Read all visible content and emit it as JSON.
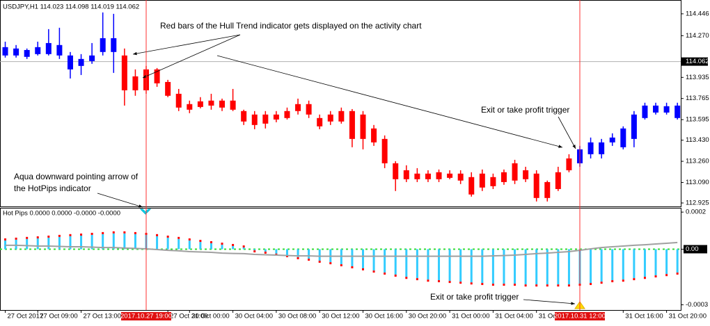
{
  "chart_data": [
    {
      "type": "candlestick",
      "title": "USDJPY,H1 114.023 114.098 114.019 114.062",
      "categories": [
        "27 Oct 2017",
        null,
        null,
        "27 Oct 09:00",
        null,
        null,
        null,
        "27 Oct 13:00",
        null,
        null,
        null,
        null,
        null,
        "2017.10.27 19:00",
        null,
        "27 Oct 21:00",
        null,
        "30 Oct 00:00",
        null,
        null,
        null,
        "30 Oct 04:00",
        null,
        null,
        null,
        "30 Oct 08:00",
        null,
        null,
        null,
        "30 Oct 12:00",
        null,
        null,
        null,
        "30 Oct 16:00",
        null,
        null,
        null,
        "30 Oct 20:00",
        null,
        null,
        null,
        "31 Oct 00:00",
        null,
        null,
        null,
        "31 Oct 04:00",
        null,
        null,
        null,
        "31 Oct 08:00",
        null,
        null,
        null,
        "2017.10.31 12:00",
        null,
        null,
        null,
        "31 Oct 16:00",
        null,
        null,
        null,
        "31 Oct 20:00",
        null
      ],
      "open": [
        114.111,
        114.111,
        114.1,
        114.122,
        114.122,
        114.111,
        113.999,
        114.027,
        114.066,
        114.139,
        114.139,
        114.111,
        113.943,
        113.999,
        113.999,
        113.898,
        113.803,
        113.72,
        113.742,
        113.748,
        113.748,
        113.748,
        113.664,
        113.636,
        113.636,
        113.636,
        113.664,
        113.72,
        113.72,
        113.608,
        113.636,
        113.664,
        113.664,
        113.636,
        113.524,
        113.44,
        113.244,
        113.188,
        113.161,
        113.161,
        113.172,
        113.161,
        113.161,
        113.133,
        113.161,
        113.133,
        113.172,
        113.244,
        113.188,
        113.161,
        113.093,
        113.172,
        113.283,
        113.244,
        113.317,
        113.317,
        113.412,
        113.373,
        113.44,
        113.608,
        113.652,
        113.652,
        113.608
      ],
      "high": [
        114.222,
        114.195,
        114.167,
        114.222,
        114.323,
        114.334,
        114.139,
        114.122,
        114.211,
        114.457,
        114.446,
        114.167,
        113.999,
        114.027,
        114.01,
        113.915,
        113.842,
        113.748,
        113.776,
        113.803,
        113.764,
        113.842,
        113.675,
        113.664,
        113.664,
        113.664,
        113.692,
        113.764,
        113.748,
        113.636,
        113.664,
        113.692,
        113.68,
        113.664,
        113.552,
        113.468,
        113.261,
        113.228,
        113.205,
        113.188,
        113.194,
        113.188,
        113.188,
        113.172,
        113.194,
        113.161,
        113.194,
        113.272,
        113.216,
        113.188,
        113.105,
        113.216,
        113.317,
        113.384,
        113.451,
        113.44,
        113.485,
        113.541,
        113.664,
        113.731,
        113.731,
        113.731,
        113.731
      ],
      "low": [
        114.094,
        114.094,
        114.083,
        114.111,
        114.111,
        114.083,
        113.926,
        113.954,
        114.044,
        114.111,
        113.971,
        113.708,
        113.787,
        113.803,
        113.859,
        113.776,
        113.664,
        113.647,
        113.686,
        113.675,
        113.664,
        113.664,
        113.552,
        113.518,
        113.524,
        113.574,
        113.596,
        113.636,
        113.608,
        113.518,
        113.552,
        113.563,
        113.373,
        113.356,
        113.384,
        113.205,
        113.021,
        113.093,
        113.093,
        113.093,
        113.093,
        113.116,
        113.077,
        112.976,
        113.021,
        113.037,
        113.071,
        113.077,
        113.093,
        112.937,
        112.937,
        113.021,
        113.172,
        113.216,
        113.283,
        113.283,
        113.384,
        113.356,
        113.373,
        113.596,
        113.636,
        113.636,
        113.596
      ],
      "close": [
        114.178,
        114.167,
        114.155,
        114.178,
        114.211,
        114.195,
        114.111,
        114.083,
        114.111,
        114.25,
        114.25,
        113.831,
        113.831,
        113.831,
        113.887,
        113.787,
        113.692,
        113.675,
        113.697,
        113.708,
        113.692,
        113.675,
        113.58,
        113.552,
        113.563,
        113.596,
        113.608,
        113.664,
        113.636,
        113.541,
        113.58,
        113.58,
        113.44,
        113.44,
        113.412,
        113.244,
        113.116,
        113.116,
        113.116,
        113.116,
        113.116,
        113.127,
        113.105,
        112.993,
        113.049,
        113.06,
        113.093,
        113.105,
        113.116,
        112.965,
        112.965,
        113.037,
        113.188,
        113.356,
        113.412,
        113.412,
        113.451,
        113.524,
        113.636,
        113.708,
        113.708,
        113.703,
        113.708
      ],
      "colors": [
        "#0000ff",
        "#0000ff",
        "#0000ff",
        "#0000ff",
        "#0000ff",
        "#0000ff",
        "#0000ff",
        "#0000ff",
        "#0000ff",
        "#0000ff",
        "#0000ff",
        "#ff0000",
        "#ff0000",
        "#ff0000",
        "#ff0000",
        "#ff0000",
        "#ff0000",
        "#ff0000",
        "#ff0000",
        "#ff0000",
        "#ff0000",
        "#ff0000",
        "#ff0000",
        "#ff0000",
        "#ff0000",
        "#ff0000",
        "#ff0000",
        "#ff0000",
        "#ff0000",
        "#ff0000",
        "#ff0000",
        "#ff0000",
        "#ff0000",
        "#ff0000",
        "#ff0000",
        "#ff0000",
        "#ff0000",
        "#ff0000",
        "#ff0000",
        "#ff0000",
        "#ff0000",
        "#ff0000",
        "#ff0000",
        "#ff0000",
        "#ff0000",
        "#ff0000",
        "#ff0000",
        "#ff0000",
        "#ff0000",
        "#ff0000",
        "#ff0000",
        "#ff0000",
        "#ff0000",
        "#0000ff",
        "#0000ff",
        "#0000ff",
        "#0000ff",
        "#0000ff",
        "#0000ff",
        "#0000ff",
        "#0000ff",
        "#0000ff",
        "#0000ff"
      ],
      "vlines": [
        "2017.10.27 19:00",
        "2017.10.31 12:00"
      ],
      "current_price": 114.062,
      "ylim": [
        112.897,
        114.546
      ],
      "yticks": [
        114.446,
        {
          "value": 114.27,
          "label": "114.270"
        },
        113.935,
        113.765,
        113.595,
        {
          "value": 113.43,
          "label": "113.430"
        },
        {
          "value": 113.26,
          "label": "113.260"
        },
        {
          "value": 113.09,
          "label": "113.090"
        },
        112.925
      ]
    },
    {
      "type": "histogram",
      "title": "Hot Pips 0.0000 0.0000 -0.0000 -0.0000",
      "series": [
        {
          "style": "bar",
          "color": "#33ccff",
          "tip_color": "#ff0000",
          "values": [
            4.7e-05,
            5.1e-05,
            5.5e-05,
            5.8e-05,
            6.2e-05,
            6.6e-05,
            7e-05,
            7.3e-05,
            7.7e-05,
            8.1e-05,
            8.5e-05,
            8.5e-05,
            8.1e-05,
            7.7e-05,
            7e-05,
            6.2e-05,
            5.5e-05,
            4.7e-05,
            3.9e-05,
            3.2e-05,
            2.4e-05,
            1.7e-05,
            9e-06,
            -6e-06,
            -1.3e-05,
            -2.4e-05,
            -3.2e-05,
            -4.3e-05,
            -5.1e-05,
            -6.2e-05,
            -7e-05,
            -8.1e-05,
            -9.2e-05,
            -0.000103,
            -0.000115,
            -0.000126,
            -0.000137,
            -0.000149,
            -0.000156,
            -0.000164,
            -0.000167,
            -0.000171,
            -0.000175,
            -0.000179,
            -0.000182,
            -0.000186,
            -0.000186,
            -0.000186,
            -0.00019,
            -0.00019,
            -0.00019,
            -0.00019,
            -0.00019,
            -0.000186,
            -0.000182,
            -0.000175,
            -0.000167,
            -0.000164,
            -0.000156,
            -0.000149,
            -0.000141,
            -0.000134,
            -0.000126
          ]
        },
        {
          "style": "line",
          "color": "#a0a0a0",
          "values": [
            2.1e-05,
            2.1e-05,
            1.9e-05,
            1.7e-05,
            1.7e-05,
            1.5e-05,
            1.3e-05,
            1.3e-05,
            1.1e-05,
            9e-06,
            9e-06,
            6e-06,
            4e-06,
            2e-06,
            -2e-06,
            -6e-06,
            -9e-06,
            -1.3e-05,
            -1.5e-05,
            -1.7e-05,
            -2.1e-05,
            -2.3e-05,
            -2.4e-05,
            -2.8e-05,
            -3e-05,
            -3.2e-05,
            -3.4e-05,
            -3.6e-05,
            -3.6e-05,
            -3.8e-05,
            -3.8e-05,
            -3.8e-05,
            -3.8e-05,
            -3.8e-05,
            -3.8e-05,
            -3.8e-05,
            -3.8e-05,
            -3.8e-05,
            -3.8e-05,
            -3.8e-05,
            -3.8e-05,
            -3.8e-05,
            -3.8e-05,
            -3.8e-05,
            -3.8e-05,
            -3.6e-05,
            -3.4e-05,
            -3.2e-05,
            -2.8e-05,
            -2.4e-05,
            -2.1e-05,
            -1.7e-05,
            -1.3e-05,
            -6e-06,
            2e-06,
            9e-06,
            1.3e-05,
            1.7e-05,
            2.1e-05,
            2.4e-05,
            2.8e-05,
            3.2e-05,
            3.6e-05
          ]
        }
      ],
      "ylim": [
        -0.000328,
        0.000223
      ],
      "yticks": [
        0.0002,
        {
          "value": 0,
          "label": "0.00"
        },
        -0.0003
      ]
    }
  ],
  "annotations": [
    "Red bars of the Hull Trend indicator gets displayed on the activity chart",
    "Exit or take profit trigger",
    "Aqua downward pointing arrow of",
    "the HotPips indicator",
    "Exit or take profit trigger"
  ]
}
